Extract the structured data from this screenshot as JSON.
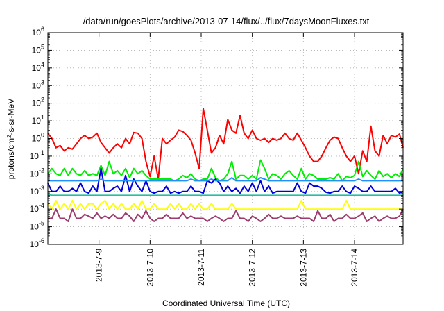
{
  "chart_data": {
    "type": "line",
    "title": "/data/run/goesPlots/archive/2013-07-14/flux/../flux/7daysMoonFluxes.txt",
    "xlabel": "Coordinated Universal Time (UTC)",
    "ylabel_main": "protons/cm",
    "ylabel_sup": "2",
    "ylabel_rest": "-s-sr-MeV",
    "y_scale": "log",
    "ylim": [
      1e-06,
      1000000.0
    ],
    "xlim": [
      0,
      6.95
    ],
    "grid": true,
    "y_ticks": [
      {
        "base": "10",
        "exp": "-6",
        "v": -6
      },
      {
        "base": "10",
        "exp": "-5",
        "v": -5
      },
      {
        "base": "10",
        "exp": "-4",
        "v": -4
      },
      {
        "base": "10",
        "exp": "-3",
        "v": -3
      },
      {
        "base": "10",
        "exp": "-2",
        "v": -2
      },
      {
        "base": "10",
        "exp": "-1",
        "v": -1
      },
      {
        "base": "10",
        "exp": "0",
        "v": 0
      },
      {
        "base": "10",
        "exp": "1",
        "v": 1
      },
      {
        "base": "10",
        "exp": "2",
        "v": 2
      },
      {
        "base": "10",
        "exp": "3",
        "v": 3
      },
      {
        "base": "10",
        "exp": "4",
        "v": 4
      },
      {
        "base": "10",
        "exp": "5",
        "v": 5
      },
      {
        "base": "10",
        "exp": "6",
        "v": 6
      }
    ],
    "x_ticks": [
      {
        "label": "2013-7-9",
        "x": 1
      },
      {
        "label": "2013-7-10",
        "x": 2
      },
      {
        "label": "2013-7-11",
        "x": 3
      },
      {
        "label": "2013-7-12",
        "x": 4
      },
      {
        "label": "2013-7-13",
        "x": 5
      },
      {
        "label": "2013-7-14",
        "x": 6
      }
    ],
    "x": [
      0,
      0.08,
      0.16,
      0.24,
      0.32,
      0.4,
      0.48,
      0.56,
      0.64,
      0.72,
      0.8,
      0.88,
      0.96,
      1.04,
      1.12,
      1.2,
      1.28,
      1.36,
      1.44,
      1.52,
      1.6,
      1.68,
      1.76,
      1.84,
      1.92,
      2,
      2.08,
      2.16,
      2.24,
      2.32,
      2.4,
      2.48,
      2.56,
      2.64,
      2.72,
      2.8,
      2.88,
      2.96,
      3.04,
      3.12,
      3.2,
      3.28,
      3.36,
      3.44,
      3.52,
      3.6,
      3.68,
      3.76,
      3.84,
      3.92,
      4,
      4.08,
      4.16,
      4.24,
      4.32,
      4.4,
      4.48,
      4.56,
      4.64,
      4.72,
      4.8,
      4.88,
      4.96,
      5.04,
      5.12,
      5.2,
      5.28,
      5.36,
      5.44,
      5.52,
      5.6,
      5.68,
      5.76,
      5.84,
      5.92,
      6,
      6.08,
      6.16,
      6.24,
      6.32,
      6.4,
      6.48,
      6.56,
      6.64,
      6.72,
      6.8,
      6.88,
      6.95
    ],
    "series": [
      {
        "color": "#ff0000",
        "values": [
          2,
          1,
          0.3,
          0.4,
          0.2,
          0.3,
          0.25,
          0.5,
          1,
          1.5,
          1,
          1.2,
          2,
          0.6,
          0.3,
          0.15,
          0.3,
          0.5,
          0.3,
          1,
          0.5,
          2.2,
          2,
          1,
          0.05,
          0.007,
          0.1,
          0.005,
          1,
          0.5,
          0.8,
          1.2,
          3,
          2.5,
          1.5,
          0.8,
          0.15,
          0.02,
          50,
          3,
          0.15,
          0.3,
          1.5,
          0.5,
          12,
          3,
          2,
          20,
          2,
          1,
          3,
          1,
          0.8,
          1,
          0.6,
          1,
          0.8,
          1,
          2,
          1,
          0.8,
          2,
          0.8,
          0.3,
          0.1,
          0.05,
          0.05,
          0.1,
          0.3,
          0.8,
          1.2,
          1,
          0.3,
          0.1,
          0.05,
          0.1,
          0.01,
          0.2,
          0.05,
          5,
          0.2,
          0.1,
          1.5,
          0.5,
          1.5,
          1.2,
          1.8,
          0.3
        ]
      },
      {
        "color": "#00ee00",
        "values": [
          0.01,
          0.02,
          0.01,
          0.008,
          0.02,
          0.008,
          0.02,
          0.01,
          0.008,
          0.015,
          0.008,
          0.01,
          0.008,
          0.03,
          0.008,
          0.05,
          0.01,
          0.015,
          0.008,
          0.02,
          0.006,
          0.02,
          0.01,
          0.015,
          0.008,
          0.005,
          0.005,
          0.005,
          0.005,
          0.005,
          0.005,
          0.004,
          0.005,
          0.008,
          0.006,
          0.01,
          0.005,
          0.004,
          0.005,
          0.005,
          0.02,
          0.006,
          0.004,
          0.005,
          0.01,
          0.05,
          0.005,
          0.008,
          0.008,
          0.005,
          0.008,
          0.005,
          0.06,
          0.02,
          0.005,
          0.01,
          0.008,
          0.005,
          0.01,
          0.015,
          0.008,
          0.005,
          0.02,
          0.005,
          0.01,
          0.008,
          0.005,
          0.005,
          0.005,
          0.006,
          0.005,
          0.01,
          0.004,
          0.007,
          0.006,
          0.008,
          0.05,
          0.007,
          0.015,
          0.008,
          0.005,
          0.015,
          0.007,
          0.01,
          0.006,
          0.01,
          0.007,
          0.02
        ]
      },
      {
        "color": "#0000dd",
        "values": [
          0.003,
          0.001,
          0.001,
          0.002,
          0.001,
          0.001,
          0.0015,
          0.001,
          0.003,
          0.001,
          0.0008,
          0.002,
          0.001,
          0.02,
          0.001,
          0.001,
          0.0015,
          0.002,
          0.001,
          0.008,
          0.001,
          0.005,
          0.002,
          0.001,
          0.004,
          0.001,
          0.0008,
          0.001,
          0.001,
          0.002,
          0.0008,
          0.001,
          0.0008,
          0.001,
          0.001,
          0.002,
          0.001,
          0.001,
          0.0008,
          0.004,
          0.003,
          0.005,
          0.003,
          0.001,
          0.002,
          0.001,
          0.0015,
          0.0008,
          0.002,
          0.001,
          0.003,
          0.001,
          0.004,
          0.001,
          0.002,
          0.0008,
          0.001,
          0.001,
          0.001,
          0.001,
          0.001,
          0.003,
          0.001,
          0.0008,
          0.003,
          0.002,
          0.002,
          0.0015,
          0.0009,
          0.0008,
          0.001,
          0.001,
          0.002,
          0.001,
          0.0008,
          0.002,
          0.0015,
          0.001,
          0.001,
          0.002,
          0.001,
          0.001,
          0.001,
          0.001,
          0.001,
          0.0015,
          0.0008,
          0.001
        ]
      },
      {
        "color": "#1e90ff",
        "values": [
          0.004,
          0.004,
          0.004,
          0.004,
          0.004,
          0.004,
          0.004,
          0.004,
          0.004,
          0.004,
          0.004,
          0.004,
          0.004,
          0.005,
          0.004,
          0.004,
          0.004,
          0.004,
          0.004,
          0.004,
          0.004,
          0.004,
          0.004,
          0.004,
          0.004,
          0.004,
          0.004,
          0.004,
          0.004,
          0.004,
          0.004,
          0.004,
          0.004,
          0.004,
          0.004,
          0.005,
          0.004,
          0.004,
          0.004,
          0.004,
          0.005,
          0.004,
          0.004,
          0.004,
          0.004,
          0.006,
          0.004,
          0.004,
          0.004,
          0.004,
          0.004,
          0.004,
          0.006,
          0.005,
          0.004,
          0.004,
          0.004,
          0.004,
          0.004,
          0.004,
          0.004,
          0.004,
          0.004,
          0.004,
          0.004,
          0.004,
          0.004,
          0.004,
          0.004,
          0.004,
          0.004,
          0.004,
          0.004,
          0.004,
          0.004,
          0.004,
          0.005,
          0.004,
          0.004,
          0.004,
          0.004,
          0.004,
          0.004,
          0.004,
          0.004,
          0.004,
          0.004,
          0.004
        ]
      },
      {
        "color": "#20c0a0",
        "values": [
          0.0007,
          0.0006,
          0.0006,
          0.0006,
          0.0006,
          0.0006,
          0.0006,
          0.0006,
          0.0006,
          0.0006,
          0.0006,
          0.0006,
          0.0006,
          0.0006,
          0.0006,
          0.0006,
          0.0006,
          0.0006,
          0.0006,
          0.0006,
          0.0006,
          0.0006,
          0.0006,
          0.0006,
          0.0006,
          0.0006,
          0.0006,
          0.0006,
          0.0006,
          0.0006,
          0.0006,
          0.0006,
          0.0006,
          0.0006,
          0.0006,
          0.0006,
          0.0006,
          0.0006,
          0.0006,
          0.0006,
          0.0006,
          0.0006,
          0.0006,
          0.0006,
          0.0006,
          0.0006,
          0.0006,
          0.0006,
          0.0006,
          0.0006,
          0.0006,
          0.0006,
          0.0006,
          0.0006,
          0.0006,
          0.0006,
          0.0006,
          0.0006,
          0.0006,
          0.0006,
          0.0006,
          0.0006,
          0.0006,
          0.0006,
          0.0006,
          0.0006,
          0.0006,
          0.0006,
          0.0006,
          0.0006,
          0.0006,
          0.0006,
          0.0006,
          0.0006,
          0.0006,
          0.0006,
          0.0006,
          0.0006,
          0.0006,
          0.0006,
          0.0006,
          0.0006,
          0.0006,
          0.0006,
          0.0006,
          0.0006,
          0.0006,
          0.0006
        ]
      },
      {
        "color": "#ffff00",
        "values": [
          0.0002,
          0.0001,
          0.0003,
          0.0001,
          0.0002,
          0.0001,
          0.0003,
          0.0001,
          0.0002,
          0.0001,
          0.0002,
          0.0002,
          0.0001,
          0.0002,
          0.0003,
          0.0001,
          0.0002,
          0.0001,
          0.0002,
          0.0001,
          0.0001,
          0.0002,
          0.0001,
          0.0003,
          0.0001,
          0.0001,
          0.0002,
          0.0001,
          0.0001,
          0.0001,
          0.0002,
          0.0001,
          0.0002,
          0.0001,
          0.0001,
          0.0002,
          0.0001,
          0.0002,
          0.0001,
          0.0001,
          0.0002,
          0.0001,
          0.0001,
          0.0001,
          0.0001,
          0.0002,
          0.0001,
          0.0001,
          0.0001,
          0.0001,
          0.0001,
          0.0001,
          0.0001,
          0.0001,
          0.0001,
          0.0001,
          0.0001,
          0.0001,
          0.0001,
          0.0001,
          0.0001,
          0.0001,
          0.0003,
          0.0001,
          0.0001,
          0.0001,
          0.0001,
          0.0001,
          0.0001,
          0.0001,
          0.0001,
          0.0001,
          0.0001,
          0.0003,
          0.0001,
          0.0001,
          0.0001,
          0.0001,
          0.0001,
          0.0001,
          0.0001,
          0.0001,
          0.0001,
          0.0001,
          0.0001,
          0.0001,
          0.0001,
          0.0001
        ]
      },
      {
        "color": "#9c3c6e",
        "values": [
          3e-05,
          3e-05,
          0.0001,
          3e-05,
          3e-05,
          2e-05,
          0.0001,
          3e-05,
          3e-05,
          5e-05,
          4e-05,
          3e-05,
          6e-05,
          3e-05,
          4e-05,
          3e-05,
          5e-05,
          3e-05,
          3e-05,
          6e-05,
          4e-05,
          2e-05,
          5e-05,
          3e-05,
          8e-05,
          3e-05,
          2e-05,
          3e-05,
          3e-05,
          5e-05,
          3e-05,
          3e-05,
          3e-05,
          6e-05,
          3e-05,
          4e-05,
          3e-05,
          3e-05,
          3e-05,
          2e-05,
          3e-05,
          4e-05,
          3e-05,
          2e-05,
          3e-05,
          3e-05,
          8e-05,
          3e-05,
          3e-05,
          2e-05,
          4e-05,
          3e-05,
          2e-05,
          3e-05,
          5e-05,
          3e-05,
          3e-05,
          4e-05,
          3e-05,
          3e-05,
          3e-05,
          4e-05,
          3e-05,
          3e-05,
          3e-05,
          2e-05,
          8e-05,
          3e-05,
          3e-05,
          5e-05,
          2e-05,
          3e-05,
          3e-05,
          5e-05,
          3e-05,
          3e-05,
          4e-05,
          6e-05,
          2e-05,
          3e-05,
          4e-05,
          2e-05,
          3e-05,
          4e-05,
          3e-05,
          3e-05,
          4e-05,
          0.0001
        ]
      }
    ]
  }
}
